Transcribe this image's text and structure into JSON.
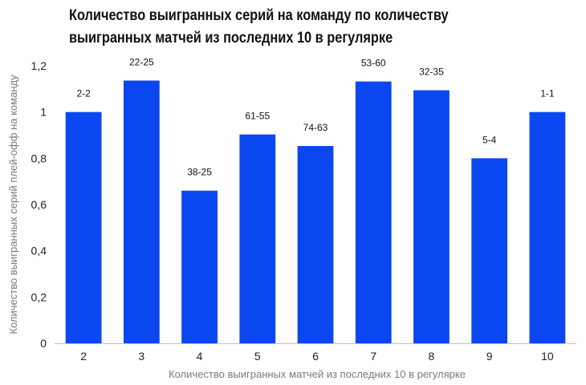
{
  "chart_data": {
    "type": "bar",
    "title": "Количество выигранных серий на команду по количеству выигранных матчей из последних 10 в регулярке",
    "xlabel": "Количество выигранных матчей из последних 10 в регулярке",
    "ylabel": "Количество выигранных серий плей-офф на команду",
    "categories": [
      "2",
      "3",
      "4",
      "5",
      "6",
      "7",
      "8",
      "9",
      "10"
    ],
    "values": [
      1,
      1.136,
      0.66,
      0.903,
      0.853,
      1.132,
      1.094,
      0.8,
      1
    ],
    "data_labels": [
      "2-2",
      "22-25",
      "38-25",
      "61-55",
      "74-63",
      "53-60",
      "32-35",
      "5-4",
      "1-1"
    ],
    "ylim": [
      0,
      1.2
    ],
    "yticks": [
      0,
      0.2,
      0.4,
      0.6,
      0.8,
      1,
      1.2
    ],
    "ytick_labels": [
      "0",
      "0,2",
      "0,4",
      "0,6",
      "0,8",
      "1",
      "1,2"
    ],
    "bar_color": "#0a47f0",
    "axis_color": "#bfbfbf",
    "grid": false,
    "legend": "none"
  }
}
